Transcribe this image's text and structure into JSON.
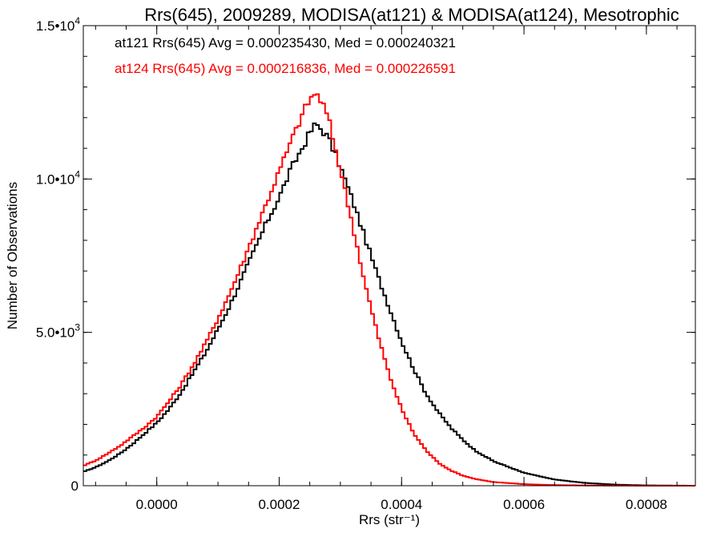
{
  "chart_data": {
    "type": "line",
    "title": "Rrs(645), 2009289, MODISA(at121) & MODISA(at124), Mesotrophic",
    "xlabel": "Rrs (str⁻¹)",
    "ylabel": "Number of Observations",
    "xlim": [
      -0.00012,
      0.00088
    ],
    "ylim": [
      0,
      15000
    ],
    "x_ticks": [
      0.0,
      0.0002,
      0.0004,
      0.0006,
      0.0008
    ],
    "x_tick_labels": [
      "0.0000",
      "0.0002",
      "0.0004",
      "0.0006",
      "0.0008"
    ],
    "y_ticks": [
      0,
      5000,
      10000,
      15000
    ],
    "y_tick_labels": [
      {
        "mantissa": "0",
        "exp": ""
      },
      {
        "mantissa": "5.0•10",
        "exp": "3"
      },
      {
        "mantissa": "1.0•10",
        "exp": "4"
      },
      {
        "mantissa": "1.5•10",
        "exp": "4"
      }
    ],
    "grid": false,
    "legend_placement": "top-left",
    "series": [
      {
        "name": "at121",
        "color": "#000000",
        "annotation": "at121 Rrs(645) Avg = 0.000235430, Med = 0.000240321",
        "x": [
          -0.00012,
          -0.0001,
          -8e-05,
          -6e-05,
          -4e-05,
          -2e-05,
          0.0,
          2e-05,
          4e-05,
          6e-05,
          8e-05,
          0.0001,
          0.00012,
          0.00014,
          0.00016,
          0.00018,
          0.0002,
          0.00022,
          0.00024,
          0.00025,
          0.00026,
          0.00027,
          0.00028,
          0.0003,
          0.00032,
          0.00034,
          0.00036,
          0.00038,
          0.0004,
          0.00042,
          0.00044,
          0.00046,
          0.00048,
          0.0005,
          0.00052,
          0.00055,
          0.0006,
          0.00065,
          0.0007,
          0.00075,
          0.0008,
          0.00088
        ],
        "y": [
          450,
          600,
          800,
          1050,
          1350,
          1700,
          2050,
          2500,
          3050,
          3700,
          4350,
          5100,
          5900,
          6800,
          7700,
          8600,
          9400,
          10350,
          11100,
          11500,
          11800,
          11600,
          11350,
          10400,
          9300,
          8100,
          6900,
          5800,
          4700,
          3800,
          3000,
          2400,
          1900,
          1500,
          1150,
          800,
          420,
          200,
          90,
          35,
          10,
          0
        ]
      },
      {
        "name": "at124",
        "color": "#ff0000",
        "annotation": "at124 Rrs(645) Avg = 0.000216836, Med = 0.000226591",
        "x": [
          -0.00012,
          -0.0001,
          -8e-05,
          -6e-05,
          -4e-05,
          -2e-05,
          0.0,
          2e-05,
          4e-05,
          6e-05,
          8e-05,
          0.0001,
          0.00012,
          0.00014,
          0.00016,
          0.00018,
          0.0002,
          0.00022,
          0.00024,
          0.00025,
          0.00026,
          0.00027,
          0.00028,
          0.0003,
          0.00032,
          0.00034,
          0.00036,
          0.00038,
          0.0004,
          0.00042,
          0.00044,
          0.00046,
          0.00048,
          0.0005,
          0.00052,
          0.00055,
          0.0006,
          0.00065,
          0.0007,
          0.00075,
          0.0008,
          0.00088
        ],
        "y": [
          650,
          820,
          1050,
          1300,
          1600,
          1900,
          2250,
          2750,
          3300,
          3950,
          4650,
          5450,
          6300,
          7250,
          8250,
          9250,
          10250,
          11250,
          12200,
          12600,
          12800,
          12500,
          12000,
          10300,
          8500,
          6600,
          5000,
          3600,
          2500,
          1700,
          1150,
          750,
          500,
          330,
          220,
          120,
          50,
          20,
          8,
          3,
          1,
          0
        ]
      }
    ]
  }
}
